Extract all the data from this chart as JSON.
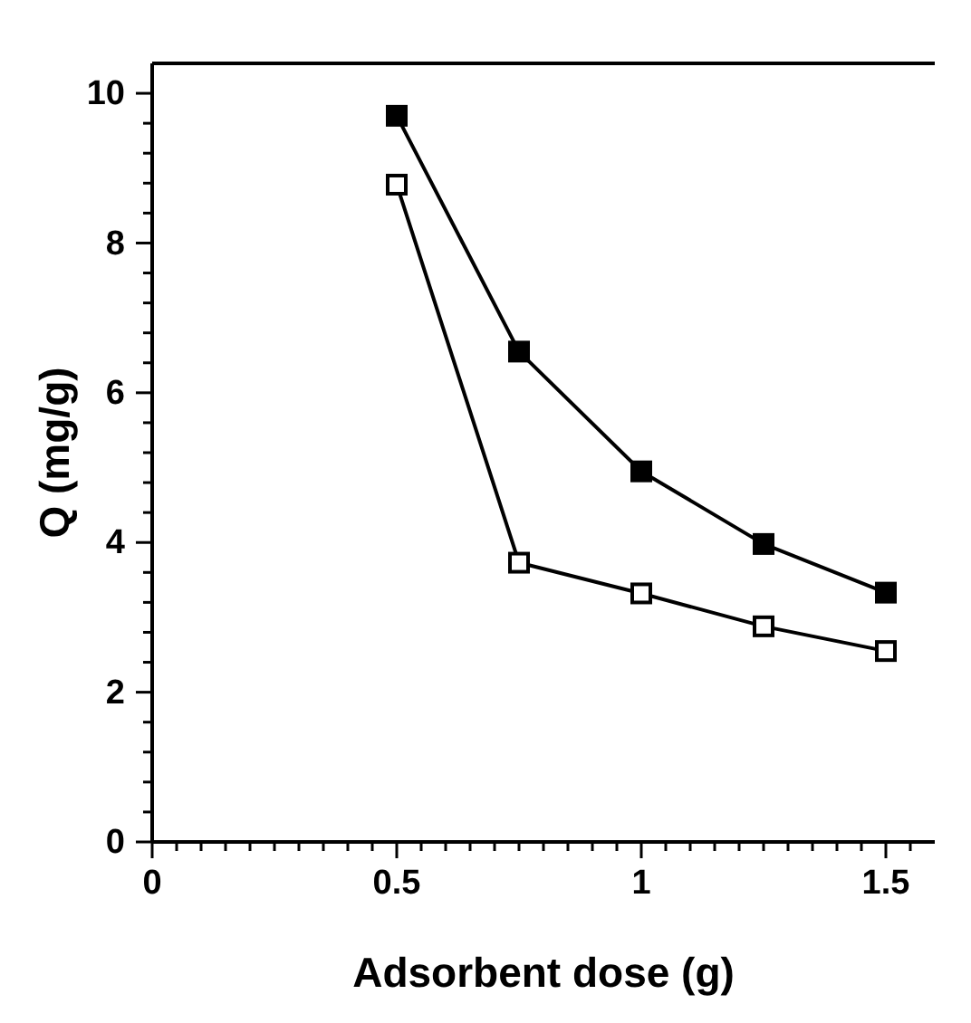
{
  "chart_data": {
    "type": "line",
    "xlabel": "Adsorbent dose (g)",
    "ylabel": "Q (mg/g)",
    "x": [
      0.5,
      0.75,
      1,
      1.25,
      1.5
    ],
    "series": [
      {
        "color": "#000000",
        "values": [
          9.7,
          6.55,
          4.95,
          3.98,
          3.33
        ]
      },
      {
        "color": "#000000",
        "values": [
          8.78,
          3.73,
          3.32,
          2.88,
          2.55
        ]
      }
    ],
    "xlim": [
      0,
      1.6
    ],
    "ylim": [
      0,
      10.4
    ],
    "xticks": [
      0,
      {
        "value": 0.05,
        "label": null
      },
      {
        "value": 0.1,
        "label": null
      },
      {
        "value": 0.15,
        "label": null
      },
      {
        "value": 0.2,
        "label": null
      },
      {
        "value": 0.25,
        "label": null
      },
      {
        "value": 0.3,
        "label": null
      },
      {
        "value": 0.35,
        "label": null
      },
      {
        "value": 0.4,
        "label": null
      },
      {
        "value": 0.45,
        "label": null
      },
      0.5,
      {
        "value": 0.55,
        "label": null
      },
      {
        "value": 0.6,
        "label": null
      },
      {
        "value": 0.65,
        "label": null
      },
      {
        "value": 0.7,
        "label": null
      },
      {
        "value": 0.75,
        "label": null
      },
      {
        "value": 0.8,
        "label": null
      },
      {
        "value": 0.85,
        "label": null
      },
      {
        "value": 0.9,
        "label": null
      },
      {
        "value": 0.95,
        "label": null
      },
      1,
      {
        "value": 1.05,
        "label": null
      },
      {
        "value": 1.1,
        "label": null
      },
      {
        "value": 1.15,
        "label": null
      },
      {
        "value": 1.2,
        "label": null
      },
      {
        "value": 1.25,
        "label": null
      },
      {
        "value": 1.3,
        "label": null
      },
      {
        "value": 1.35,
        "label": null
      },
      {
        "value": 1.4,
        "label": null
      },
      {
        "value": 1.45,
        "label": null
      },
      1.5,
      {
        "value": 1.55,
        "label": null
      }
    ],
    "yticks": [
      0,
      {
        "value": 0.4,
        "label": null
      },
      {
        "value": 0.8,
        "label": null
      },
      {
        "value": 1.2,
        "label": null
      },
      {
        "value": 1.6,
        "label": null
      },
      2,
      {
        "value": 2.4,
        "label": null
      },
      {
        "value": 2.8,
        "label": null
      },
      {
        "value": 3.2,
        "label": null
      },
      {
        "value": 3.6,
        "label": null
      },
      4,
      {
        "value": 4.4,
        "label": null
      },
      {
        "value": 4.8,
        "label": null
      },
      {
        "value": 5.2,
        "label": null
      },
      {
        "value": 5.6,
        "label": null
      },
      6,
      {
        "value": 6.4,
        "label": null
      },
      {
        "value": 6.8,
        "label": null
      },
      {
        "value": 7.2,
        "label": null
      },
      {
        "value": 7.6,
        "label": null
      },
      8,
      {
        "value": 8.4,
        "label": null
      },
      {
        "value": 8.8,
        "label": null
      },
      {
        "value": 9.2,
        "label": null
      },
      {
        "value": 9.6,
        "label": null
      },
      10
    ],
    "marker": "square",
    "grid": false
  }
}
